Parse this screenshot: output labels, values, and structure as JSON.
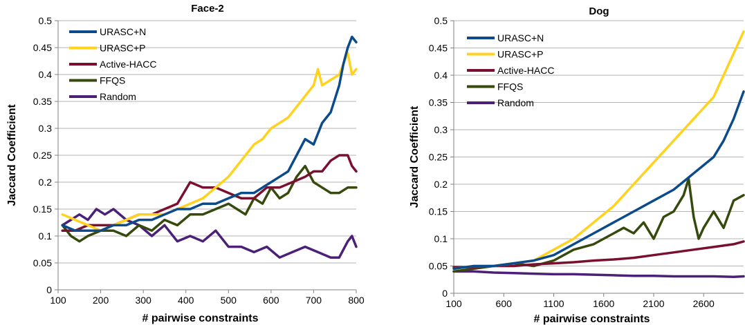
{
  "colors": {
    "URASC+N": "#0b4a8b",
    "URASC+P": "#ffd21f",
    "Active-HACC": "#7a1030",
    "FFQS": "#354a0c",
    "Random": "#4b2178",
    "grid": "#b3b3b3",
    "axis": "#808080"
  },
  "chart_data": [
    {
      "type": "line",
      "title": "Face-2",
      "xlabel": "# pairwise constraints",
      "ylabel": "Jaccard Coefficient",
      "xlim": [
        100,
        800
      ],
      "ylim": [
        0,
        0.5
      ],
      "x_ticks": [
        100,
        200,
        300,
        400,
        500,
        600,
        700,
        800
      ],
      "y_ticks": [
        0,
        0.05,
        0.1,
        0.15,
        0.2,
        0.25,
        0.3,
        0.35,
        0.4,
        0.45,
        0.5
      ],
      "x_tick_labels": [
        "100",
        "200",
        "300",
        "400",
        "500",
        "600",
        "700",
        "800"
      ],
      "y_tick_labels": [
        "0",
        "0.05",
        "0.1",
        "0.15",
        "0.2",
        "0.25",
        "0.3",
        "0.35",
        "0.4",
        "0.45",
        "0.5"
      ],
      "grid": "horizontal",
      "legend_position": "top-left",
      "series": [
        {
          "name": "URASC+N",
          "x": [
            110,
            140,
            170,
            200,
            230,
            260,
            290,
            320,
            350,
            380,
            410,
            440,
            470,
            500,
            530,
            560,
            580,
            600,
            620,
            640,
            660,
            680,
            700,
            720,
            740,
            760,
            770,
            780,
            790,
            800
          ],
          "y": [
            0.12,
            0.11,
            0.11,
            0.11,
            0.12,
            0.12,
            0.13,
            0.13,
            0.14,
            0.15,
            0.15,
            0.16,
            0.16,
            0.17,
            0.18,
            0.18,
            0.19,
            0.2,
            0.21,
            0.22,
            0.25,
            0.28,
            0.27,
            0.31,
            0.33,
            0.38,
            0.42,
            0.45,
            0.47,
            0.46
          ]
        },
        {
          "name": "URASC+P",
          "x": [
            110,
            140,
            170,
            200,
            230,
            260,
            290,
            320,
            350,
            380,
            410,
            440,
            470,
            500,
            520,
            540,
            560,
            580,
            600,
            620,
            640,
            660,
            680,
            700,
            710,
            720,
            740,
            760,
            770,
            780,
            790,
            800
          ],
          "y": [
            0.14,
            0.13,
            0.12,
            0.11,
            0.12,
            0.13,
            0.14,
            0.14,
            0.14,
            0.15,
            0.16,
            0.17,
            0.19,
            0.21,
            0.23,
            0.25,
            0.27,
            0.28,
            0.3,
            0.31,
            0.32,
            0.34,
            0.36,
            0.38,
            0.41,
            0.38,
            0.39,
            0.4,
            0.42,
            0.44,
            0.4,
            0.41
          ]
        },
        {
          "name": "Active-HACC",
          "x": [
            110,
            140,
            170,
            200,
            230,
            260,
            290,
            320,
            350,
            380,
            410,
            440,
            470,
            500,
            530,
            560,
            590,
            620,
            650,
            680,
            700,
            720,
            740,
            760,
            780,
            790,
            800
          ],
          "y": [
            0.11,
            0.11,
            0.12,
            0.12,
            0.12,
            0.13,
            0.14,
            0.14,
            0.15,
            0.16,
            0.2,
            0.19,
            0.19,
            0.18,
            0.17,
            0.17,
            0.19,
            0.19,
            0.2,
            0.21,
            0.22,
            0.22,
            0.24,
            0.25,
            0.25,
            0.23,
            0.22
          ]
        },
        {
          "name": "FFQS",
          "x": [
            110,
            130,
            150,
            170,
            200,
            230,
            260,
            290,
            320,
            350,
            380,
            410,
            440,
            470,
            500,
            520,
            540,
            560,
            580,
            600,
            620,
            640,
            660,
            680,
            700,
            720,
            740,
            760,
            780,
            800
          ],
          "y": [
            0.12,
            0.1,
            0.09,
            0.1,
            0.11,
            0.11,
            0.1,
            0.12,
            0.11,
            0.13,
            0.12,
            0.14,
            0.14,
            0.15,
            0.16,
            0.15,
            0.14,
            0.17,
            0.16,
            0.19,
            0.17,
            0.18,
            0.21,
            0.23,
            0.2,
            0.19,
            0.18,
            0.18,
            0.19,
            0.19
          ]
        },
        {
          "name": "Random",
          "x": [
            110,
            130,
            150,
            170,
            190,
            210,
            230,
            260,
            290,
            320,
            350,
            380,
            410,
            440,
            470,
            500,
            530,
            560,
            590,
            620,
            650,
            680,
            710,
            740,
            760,
            780,
            790,
            800
          ],
          "y": [
            0.12,
            0.13,
            0.14,
            0.13,
            0.15,
            0.14,
            0.15,
            0.13,
            0.12,
            0.1,
            0.12,
            0.09,
            0.1,
            0.09,
            0.11,
            0.08,
            0.08,
            0.07,
            0.08,
            0.06,
            0.07,
            0.08,
            0.07,
            0.06,
            0.06,
            0.09,
            0.1,
            0.08
          ]
        }
      ]
    },
    {
      "type": "line",
      "title": "Dog",
      "xlabel": "# pairwise constraints",
      "ylabel": "Jaccard Coefficient",
      "xlim": [
        100,
        3000
      ],
      "ylim": [
        0,
        0.5
      ],
      "x_ticks": [
        100,
        600,
        1100,
        1600,
        2100,
        2600
      ],
      "y_ticks": [
        0,
        0.05,
        0.1,
        0.15,
        0.2,
        0.25,
        0.3,
        0.35,
        0.4,
        0.45,
        0.5
      ],
      "x_tick_labels": [
        "100",
        "600",
        "1100",
        "1600",
        "2100",
        "2600"
      ],
      "y_tick_labels": [
        "0",
        "0.05",
        "0.1",
        "0.15",
        "0.2",
        "0.25",
        "0.3",
        "0.35",
        "0.4",
        "0.45",
        "0.5"
      ],
      "grid": "horizontal",
      "legend_position": "top-left",
      "series": [
        {
          "name": "URASC+N",
          "x": [
            100,
            300,
            500,
            700,
            900,
            1100,
            1300,
            1500,
            1700,
            1900,
            2100,
            2300,
            2500,
            2700,
            2800,
            2900,
            3000
          ],
          "y": [
            0.045,
            0.05,
            0.05,
            0.055,
            0.06,
            0.07,
            0.09,
            0.11,
            0.13,
            0.15,
            0.17,
            0.19,
            0.22,
            0.25,
            0.28,
            0.32,
            0.37
          ]
        },
        {
          "name": "URASC+P",
          "x": [
            100,
            300,
            500,
            700,
            900,
            1100,
            1300,
            1500,
            1700,
            1900,
            2100,
            2300,
            2500,
            2700,
            2800,
            2900,
            3000
          ],
          "y": [
            0.045,
            0.05,
            0.05,
            0.055,
            0.06,
            0.08,
            0.1,
            0.13,
            0.16,
            0.2,
            0.24,
            0.28,
            0.32,
            0.36,
            0.4,
            0.44,
            0.48
          ]
        },
        {
          "name": "Active-HACC",
          "x": [
            100,
            300,
            500,
            700,
            900,
            1100,
            1300,
            1500,
            1700,
            1900,
            2100,
            2300,
            2500,
            2700,
            2900,
            3000
          ],
          "y": [
            0.048,
            0.048,
            0.05,
            0.05,
            0.053,
            0.055,
            0.057,
            0.06,
            0.062,
            0.065,
            0.07,
            0.075,
            0.08,
            0.085,
            0.09,
            0.095
          ]
        },
        {
          "name": "FFQS",
          "x": [
            100,
            300,
            500,
            700,
            900,
            1100,
            1300,
            1500,
            1600,
            1700,
            1800,
            1900,
            2000,
            2100,
            2200,
            2300,
            2400,
            2450,
            2500,
            2550,
            2600,
            2700,
            2800,
            2900,
            3000
          ],
          "y": [
            0.04,
            0.045,
            0.05,
            0.055,
            0.05,
            0.06,
            0.08,
            0.09,
            0.1,
            0.11,
            0.12,
            0.11,
            0.13,
            0.1,
            0.14,
            0.15,
            0.18,
            0.21,
            0.14,
            0.1,
            0.12,
            0.15,
            0.12,
            0.17,
            0.18
          ]
        },
        {
          "name": "Random",
          "x": [
            100,
            300,
            500,
            700,
            900,
            1100,
            1300,
            1500,
            1700,
            1900,
            2100,
            2300,
            2500,
            2700,
            2900,
            3000
          ],
          "y": [
            0.04,
            0.04,
            0.038,
            0.037,
            0.036,
            0.035,
            0.035,
            0.034,
            0.033,
            0.032,
            0.032,
            0.031,
            0.031,
            0.031,
            0.03,
            0.031
          ]
        }
      ]
    }
  ]
}
